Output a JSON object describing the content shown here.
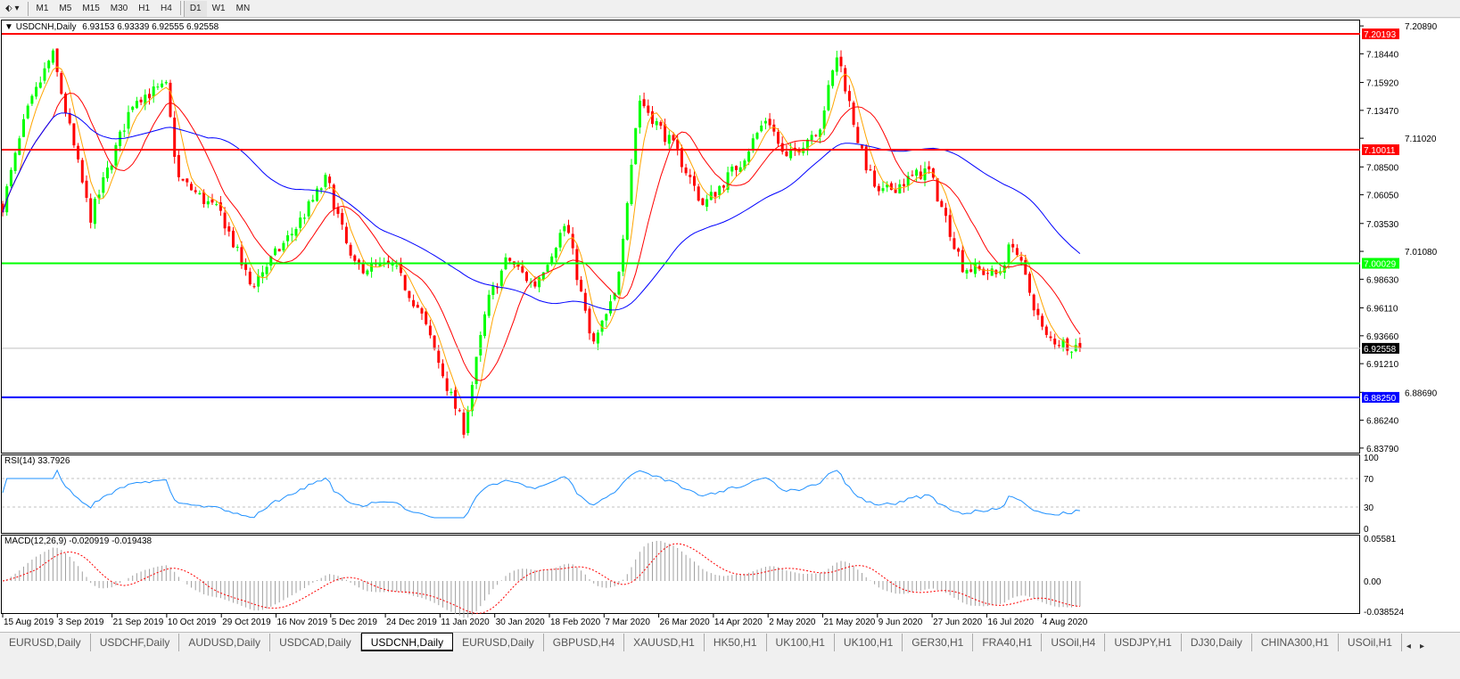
{
  "toolbar": {
    "periods": [
      "M1",
      "M5",
      "M15",
      "M30",
      "H1",
      "H4",
      "D1",
      "W1",
      "MN"
    ],
    "active": "D1"
  },
  "main": {
    "title": "USDCNH,Daily",
    "ohlc": "6.93153 6.93339 6.92555 6.92558",
    "price_ticks": [
      "7.20890",
      "7.18440",
      "7.15920",
      "7.13470",
      "7.11020",
      "7.08500",
      "7.06050",
      "7.03530",
      "7.01080",
      "6.98630",
      "6.96110",
      "6.93660",
      "6.91210",
      "6.88690",
      "6.86240",
      "6.83790"
    ],
    "levels": [
      {
        "value": "7.20193",
        "color": "#ff0000"
      },
      {
        "value": "7.10011",
        "color": "#ff0000"
      },
      {
        "value": "7.00029",
        "color": "#00ff00"
      },
      {
        "value": "6.88250",
        "color": "#0000ff"
      }
    ],
    "current_price": "6.92558"
  },
  "rsi": {
    "label": "RSI(14) 33.7926",
    "ticks": [
      "100",
      "70",
      "30",
      "0"
    ],
    "color": "#1e90ff"
  },
  "macd": {
    "label": "MACD(12,26,9) -0.020919 -0.019438",
    "ticks": [
      "0.05581",
      "0.00",
      "-0.038524"
    ],
    "signal_color": "#ff0000",
    "hist_color": "#a0a0a0"
  },
  "colors": {
    "bull": "#00ff00",
    "bear": "#ff0000",
    "ma_fast": "#ffa500",
    "ma_mid": "#ff0000",
    "ma_slow": "#0000ff"
  },
  "date_labels": [
    "15 Aug 2019",
    "3 Sep 2019",
    "21 Sep 2019",
    "10 Oct 2019",
    "29 Oct 2019",
    "16 Nov 2019",
    "5 Dec 2019",
    "24 Dec 2019",
    "11 Jan 2020",
    "30 Jan 2020",
    "18 Feb 2020",
    "7 Mar 2020",
    "26 Mar 2020",
    "14 Apr 2020",
    "2 May 2020",
    "21 May 2020",
    "9 Jun 2020",
    "27 Jun 2020",
    "16 Jul 2020",
    "4 Aug 2020"
  ],
  "tabs": [
    "EURUSD,Daily",
    "USDCHF,Daily",
    "AUDUSD,Daily",
    "USDCAD,Daily",
    "USDCNH,Daily",
    "EURUSD,Daily",
    "GBPUSD,H4",
    "XAUUSD,H1",
    "HK50,H1",
    "UK100,H1",
    "UK100,H1",
    "GER30,H1",
    "FRA40,H1",
    "USOil,H4",
    "USDJPY,H1",
    "DJ30,Daily",
    "CHINA300,H1",
    "USOil,H1"
  ],
  "active_tab": "USDCNH,Daily",
  "chart_data": {
    "type": "candlestick",
    "symbol": "USDCNH",
    "timeframe": "Daily",
    "ylim": [
      6.8379,
      7.2089
    ],
    "close_path": [
      [
        "2019-08-15",
        7.051
      ],
      [
        "2019-08-23",
        7.13
      ],
      [
        "2019-09-01",
        7.185
      ],
      [
        "2019-09-14",
        7.04
      ],
      [
        "2019-09-29",
        7.145
      ],
      [
        "2019-10-10",
        7.155
      ],
      [
        "2019-10-14",
        7.075
      ],
      [
        "2019-10-29",
        7.043
      ],
      [
        "2019-11-08",
        6.98
      ],
      [
        "2019-11-23",
        7.03
      ],
      [
        "2019-12-04",
        7.075
      ],
      [
        "2019-12-13",
        6.997
      ],
      [
        "2019-12-27",
        6.997
      ],
      [
        "2020-01-05",
        6.958
      ],
      [
        "2020-01-15",
        6.887
      ],
      [
        "2020-01-20",
        6.855
      ],
      [
        "2020-01-28",
        6.965
      ],
      [
        "2020-02-04",
        7.005
      ],
      [
        "2020-02-13",
        6.98
      ],
      [
        "2020-02-24",
        7.036
      ],
      [
        "2020-03-04",
        6.926
      ],
      [
        "2020-03-12",
        6.973
      ],
      [
        "2020-03-20",
        7.145
      ],
      [
        "2020-04-02",
        7.098
      ],
      [
        "2020-04-11",
        7.051
      ],
      [
        "2020-04-24",
        7.09
      ],
      [
        "2020-05-03",
        7.13
      ],
      [
        "2020-05-09",
        7.09
      ],
      [
        "2020-05-21",
        7.122
      ],
      [
        "2020-05-27",
        7.185
      ],
      [
        "2020-06-04",
        7.098
      ],
      [
        "2020-06-10",
        7.06
      ],
      [
        "2020-06-27",
        7.083
      ],
      [
        "2020-07-09",
        6.997
      ],
      [
        "2020-07-21",
        6.99
      ],
      [
        "2020-07-26",
        7.02
      ],
      [
        "2020-08-06",
        6.935
      ],
      [
        "2020-08-19",
        6.92558
      ]
    ]
  }
}
